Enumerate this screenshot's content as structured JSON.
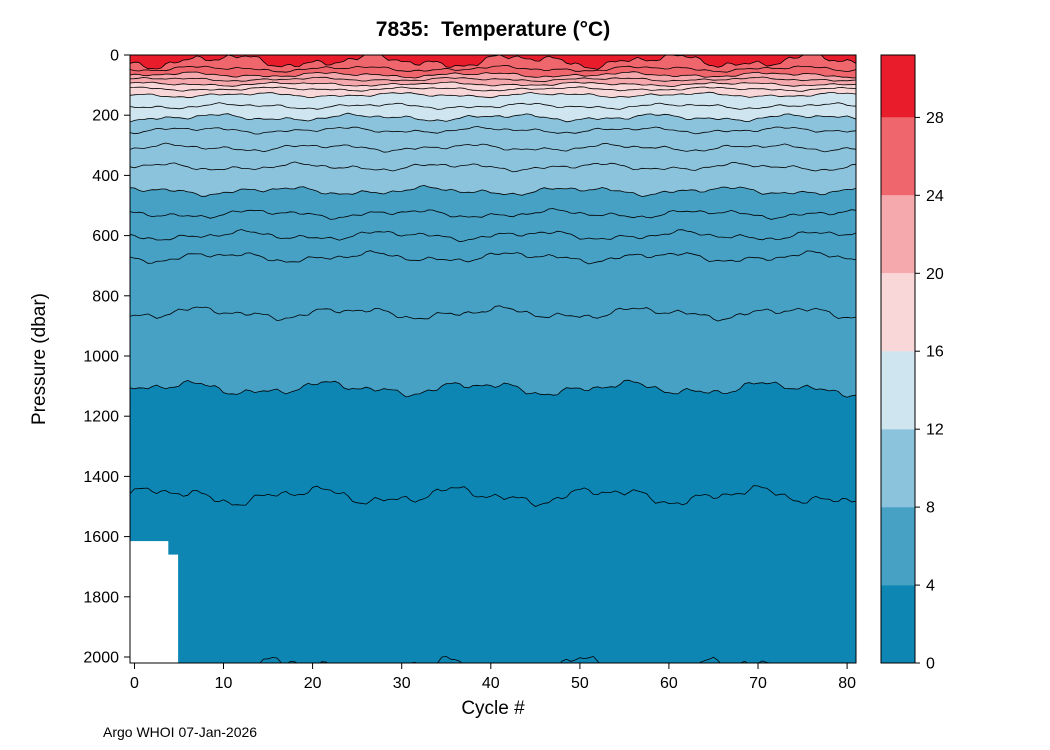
{
  "chart_data": {
    "type": "filled_contour",
    "title": "7835:  Temperature (°C)",
    "xlabel": "Cycle #",
    "ylabel": "Pressure (dbar)",
    "footer": "Argo WHOI 07-Jan-2026",
    "xlim": [
      -0.5,
      81
    ],
    "ylim": [
      0,
      2020
    ],
    "x_ticks": [
      0,
      10,
      20,
      30,
      40,
      50,
      60,
      70,
      80
    ],
    "y_ticks": [
      0,
      200,
      400,
      600,
      800,
      1000,
      1200,
      1400,
      1600,
      1800,
      2000
    ],
    "grid": false,
    "hottest_color": "#e91c2c",
    "contour_line_color": "#000000",
    "colorbar": {
      "min": 0,
      "max": 31.2,
      "ticks": [
        0,
        4,
        8,
        12,
        16,
        20,
        24,
        28
      ],
      "bands": [
        {
          "from": 0,
          "to": 4,
          "color": "#0d86b4"
        },
        {
          "from": 4,
          "to": 8,
          "color": "#46a1c5"
        },
        {
          "from": 8,
          "to": 12,
          "color": "#8cc3dc"
        },
        {
          "from": 12,
          "to": 16,
          "color": "#cfe5ef"
        },
        {
          "from": 16,
          "to": 20,
          "color": "#f9d7d8"
        },
        {
          "from": 20,
          "to": 24,
          "color": "#f5a9ad"
        },
        {
          "from": 24,
          "to": 28,
          "color": "#ef666d"
        },
        {
          "from": 28,
          "to": 31.2,
          "color": "#e91c2c"
        }
      ]
    },
    "contours": [
      {
        "temp": 28,
        "depth": 20,
        "amp": 30,
        "seed": 1,
        "filled": true,
        "fill_below": "#ef666d"
      },
      {
        "temp": 26,
        "depth": 46,
        "amp": 12,
        "seed": 2,
        "filled": false
      },
      {
        "temp": 24,
        "depth": 66,
        "amp": 11,
        "seed": 3,
        "filled": true,
        "fill_below": "#f5a9ad"
      },
      {
        "temp": 22,
        "depth": 81,
        "amp": 8,
        "seed": 4,
        "filled": false
      },
      {
        "temp": 20,
        "depth": 97,
        "amp": 8,
        "seed": 5,
        "filled": true,
        "fill_below": "#f9d7d8"
      },
      {
        "temp": 18,
        "depth": 113,
        "amp": 8,
        "seed": 6,
        "filled": false
      },
      {
        "temp": 16,
        "depth": 133,
        "amp": 10,
        "seed": 7,
        "filled": true,
        "fill_below": "#cfe5ef"
      },
      {
        "temp": 14,
        "depth": 170,
        "amp": 12,
        "seed": 8,
        "filled": false
      },
      {
        "temp": 12,
        "depth": 208,
        "amp": 15,
        "seed": 9,
        "filled": true,
        "fill_below": "#8cc3dc"
      },
      {
        "temp": 11,
        "depth": 250,
        "amp": 13,
        "seed": 10,
        "filled": false
      },
      {
        "temp": 10,
        "depth": 308,
        "amp": 15,
        "seed": 11,
        "filled": false
      },
      {
        "temp": 9,
        "depth": 372,
        "amp": 16,
        "seed": 12,
        "filled": false
      },
      {
        "temp": 8,
        "depth": 452,
        "amp": 18,
        "seed": 13,
        "filled": true,
        "fill_below": "#46a1c5"
      },
      {
        "temp": 7,
        "depth": 528,
        "amp": 18,
        "seed": 14,
        "filled": false
      },
      {
        "temp": 6,
        "depth": 600,
        "amp": 20,
        "seed": 15,
        "filled": false
      },
      {
        "temp": 5,
        "depth": 672,
        "amp": 22,
        "seed": 16,
        "filled": false
      },
      {
        "temp": 4.5,
        "depth": 858,
        "amp": 26,
        "seed": 17,
        "filled": false
      },
      {
        "temp": 4,
        "depth": 1108,
        "amp": 30,
        "seed": 18,
        "filled": true,
        "fill_below": "#0d86b4"
      },
      {
        "temp": 3,
        "depth": 1465,
        "amp": 38,
        "seed": 19,
        "filled": false
      },
      {
        "temp": 2,
        "depth": 2035,
        "amp": 45,
        "seed": 20,
        "filled": false
      }
    ],
    "missing_data": [
      {
        "x_from": -0.5,
        "x_to": 3.8,
        "depth_from": 1615,
        "depth_to": 2020
      },
      {
        "x_from": -0.5,
        "x_to": 4.9,
        "depth_from": 1660,
        "depth_to": 2020
      }
    ]
  }
}
